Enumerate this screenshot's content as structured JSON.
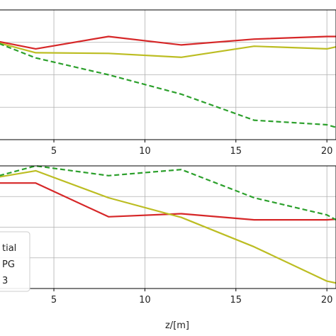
{
  "chart_data": [
    {
      "type": "line",
      "xlim": [
        2,
        20.5
      ],
      "ylim": [
        0,
        10
      ],
      "grid": true,
      "x_ticks": [
        5,
        10,
        15,
        20
      ],
      "x_tick_labels": [
        "5",
        "10",
        "15",
        "20"
      ],
      "series": [
        {
          "color": "#d62728",
          "dash": "solid",
          "x": [
            2,
            4,
            8,
            12,
            16,
            20,
            21
          ],
          "y": [
            7.55,
            7.0,
            7.95,
            7.3,
            7.75,
            7.95,
            7.95
          ]
        },
        {
          "color": "#bcbd22",
          "dash": "solid",
          "x": [
            2,
            4,
            8,
            12,
            16,
            20,
            21
          ],
          "y": [
            7.45,
            6.7,
            6.65,
            6.35,
            7.2,
            7.0,
            7.3
          ]
        },
        {
          "color": "#2ca02c",
          "dash": "dashed",
          "x": [
            2,
            4,
            8,
            12,
            16,
            20,
            21
          ],
          "y": [
            7.4,
            6.3,
            5.0,
            3.5,
            1.5,
            1.15,
            0.75
          ]
        }
      ]
    },
    {
      "type": "line",
      "xlim": [
        2,
        20.5
      ],
      "ylim": [
        0,
        10
      ],
      "grid": true,
      "xlabel": "z/[m]",
      "x_ticks": [
        5,
        10,
        15,
        20
      ],
      "x_tick_labels": [
        "5",
        "10",
        "15",
        "20"
      ],
      "legend": {
        "placement": "lower-left",
        "labels": [
          "tial",
          "PG",
          "3"
        ]
      },
      "series": [
        {
          "color": "#d62728",
          "dash": "solid",
          "x": [
            2,
            4,
            8,
            12,
            16,
            20,
            21
          ],
          "y": [
            8.6,
            8.6,
            5.85,
            6.1,
            5.6,
            5.6,
            5.7
          ]
        },
        {
          "color": "#bcbd22",
          "dash": "solid",
          "x": [
            2,
            4,
            8,
            12,
            16,
            20,
            21
          ],
          "y": [
            9.1,
            9.6,
            7.4,
            5.8,
            3.4,
            0.6,
            0.3
          ]
        },
        {
          "color": "#2ca02c",
          "dash": "dashed",
          "x": [
            2,
            4,
            8,
            12,
            16,
            20,
            21
          ],
          "y": [
            9.2,
            10.0,
            9.2,
            9.7,
            7.4,
            6.0,
            5.2
          ]
        }
      ]
    }
  ]
}
